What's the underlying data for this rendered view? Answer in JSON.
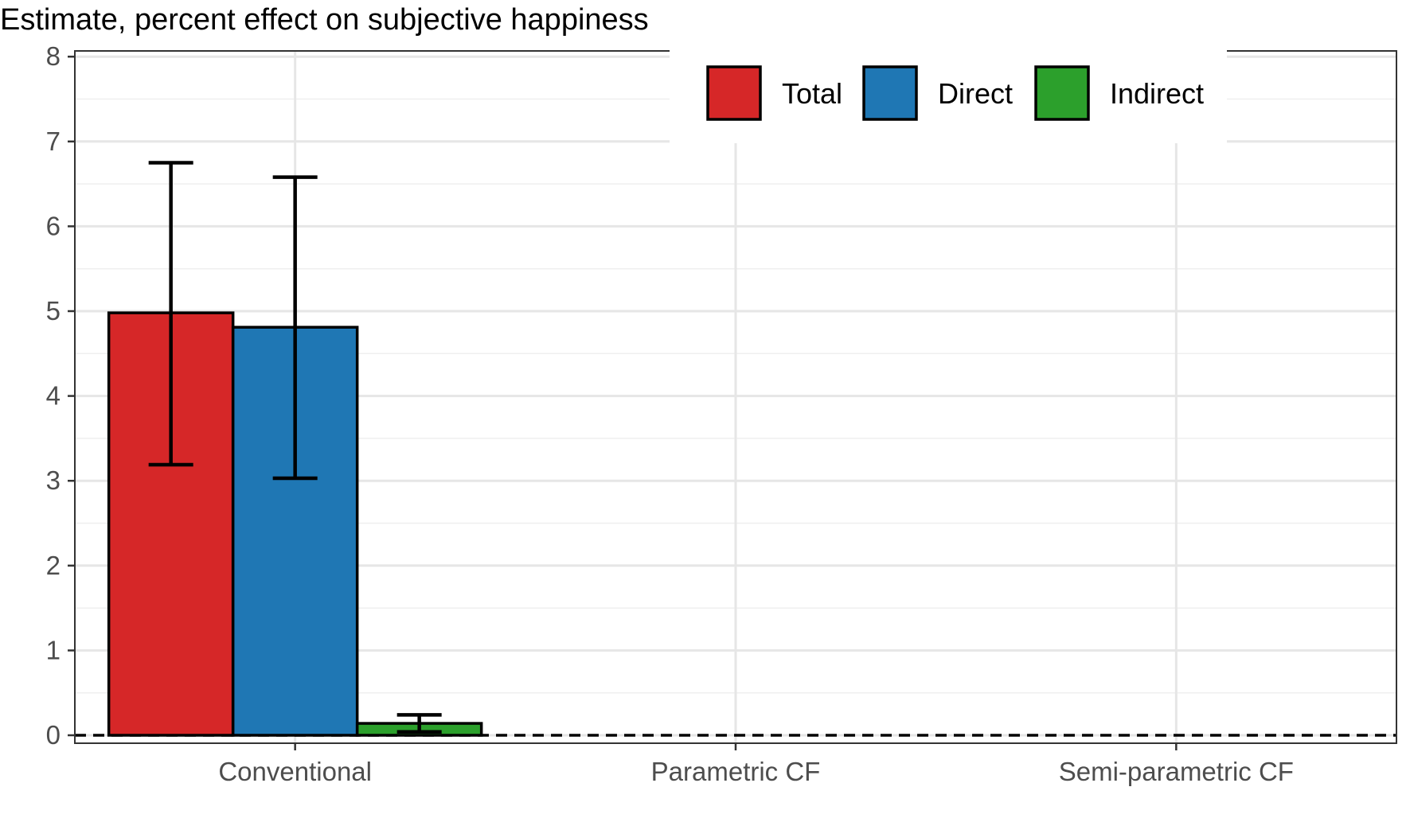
{
  "chart_data": {
    "type": "bar",
    "title": "Estimate, percent effect on subjective happiness",
    "xlabel": "",
    "ylabel": "",
    "categories": [
      "Conventional",
      "Parametric CF",
      "Semi-parametric CF"
    ],
    "ylim": [
      0,
      8
    ],
    "yticks": [
      0,
      1,
      2,
      3,
      4,
      5,
      6,
      7,
      8
    ],
    "grid": true,
    "legend_position": "top-right",
    "reference_line": {
      "y": 0,
      "style": "dashed"
    },
    "series": [
      {
        "name": "Total",
        "color": "#d62728",
        "values": [
          4.98,
          null,
          null
        ],
        "ci_low": [
          3.19,
          null,
          null
        ],
        "ci_high": [
          6.75,
          null,
          null
        ]
      },
      {
        "name": "Direct",
        "color": "#1f77b4",
        "values": [
          4.81,
          null,
          null
        ],
        "ci_low": [
          3.03,
          null,
          null
        ],
        "ci_high": [
          6.58,
          null,
          null
        ]
      },
      {
        "name": "Indirect",
        "color": "#2ca02c",
        "values": [
          0.14,
          null,
          null
        ],
        "ci_low": [
          0.04,
          null,
          null
        ],
        "ci_high": [
          0.24,
          null,
          null
        ]
      }
    ]
  }
}
